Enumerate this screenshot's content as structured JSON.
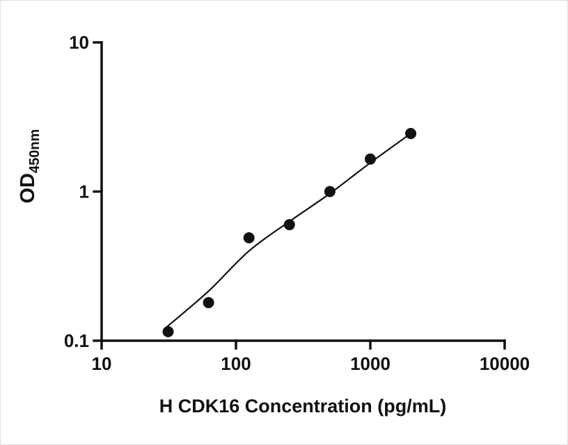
{
  "chart_data": {
    "type": "scatter",
    "title": "",
    "xlabel": "H CDK16 Concentration (pg/mL)",
    "ylabel_main": "OD",
    "ylabel_sub": "450nm",
    "x_scale": "log",
    "y_scale": "log",
    "xlim": [
      10,
      10000
    ],
    "ylim": [
      0.1,
      10
    ],
    "x_ticks": [
      10,
      100,
      1000,
      10000
    ],
    "x_tick_labels": [
      "10",
      "100",
      "1000",
      "10000"
    ],
    "y_ticks": [
      0.1,
      1,
      10
    ],
    "y_tick_labels": [
      "0.1",
      "1",
      "10"
    ],
    "grid": false,
    "legend": false,
    "axis_color": "#111111",
    "marker_color": "#111111",
    "line_color": "#111111",
    "background": "#ffffff",
    "series": [
      {
        "name": "standards",
        "type": "scatter",
        "x": [
          31.25,
          62.5,
          125,
          250,
          500,
          1000,
          2000
        ],
        "y": [
          0.115,
          0.18,
          0.49,
          0.6,
          1.0,
          1.65,
          2.45
        ]
      },
      {
        "name": "fit-curve",
        "type": "line",
        "x": [
          30,
          62.5,
          125,
          250,
          500,
          1000,
          2000
        ],
        "y": [
          0.122,
          0.215,
          0.4,
          0.63,
          0.97,
          1.56,
          2.45
        ]
      }
    ]
  }
}
